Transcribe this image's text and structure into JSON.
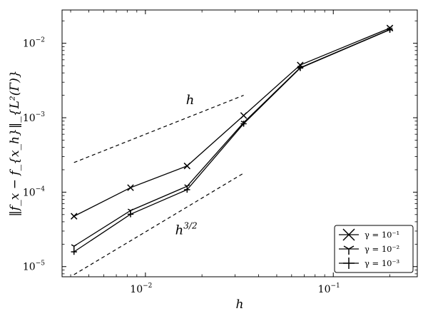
{
  "chart_data": {
    "type": "line",
    "xscale": "log",
    "yscale": "log",
    "xlim": [
      0.0036,
      0.28
    ],
    "ylim": [
      7.3e-06,
      0.028
    ],
    "xlabel": "h",
    "ylabel": "‖f_x − f_{x_h}‖_{L²(Γ)}",
    "x_ticks": [
      {
        "value": 0.01,
        "base": "10",
        "exp": "−2"
      },
      {
        "value": 0.1,
        "base": "10",
        "exp": "−1"
      }
    ],
    "y_ticks": [
      {
        "value": 1e-05,
        "base": "10",
        "exp": "−5"
      },
      {
        "value": 0.0001,
        "base": "10",
        "exp": "−4"
      },
      {
        "value": 0.001,
        "base": "10",
        "exp": "−3"
      },
      {
        "value": 0.01,
        "base": "10",
        "exp": "−2"
      }
    ],
    "x": [
      0.004167,
      0.008333,
      0.016667,
      0.033333,
      0.066667,
      0.2
    ],
    "series": [
      {
        "name": "γ = 10⁻¹",
        "gamma_exp": "−1",
        "marker": "x",
        "values": [
          4.75e-05,
          0.000115,
          0.000225,
          0.00107,
          0.0051,
          0.016
        ]
      },
      {
        "name": "γ = 10⁻²",
        "gamma_exp": "−2",
        "marker": "tri",
        "values": [
          1.88e-05,
          5.65e-05,
          0.00012,
          0.00086,
          0.0047,
          0.0153
        ]
      },
      {
        "name": "γ = 10⁻³",
        "gamma_exp": "−3",
        "marker": "plus",
        "values": [
          1.58e-05,
          5.05e-05,
          0.000108,
          0.00083,
          0.00465,
          0.0152
        ]
      }
    ],
    "reference_lines": [
      {
        "label": "h",
        "exp": "",
        "x": [
          0.004167,
          0.033333
        ],
        "y": [
          0.00025,
          0.002
        ],
        "label_at": [
          0.0173,
          0.00152
        ]
      },
      {
        "label": "h",
        "exp": "3/2",
        "x": [
          0.004167,
          0.033333
        ],
        "y": [
          7.8e-06,
          0.00018
        ],
        "label_at": [
          0.0165,
          2.7e-05
        ]
      }
    ],
    "legend": {
      "position": "bottom-right"
    }
  }
}
